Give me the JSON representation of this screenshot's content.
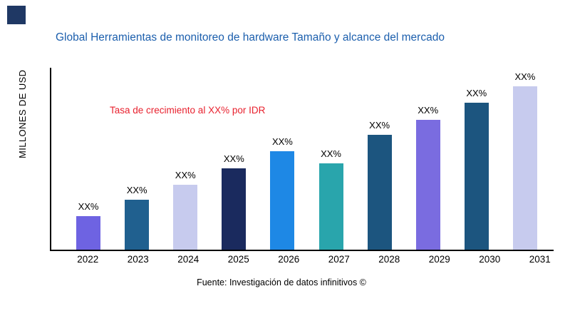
{
  "branding": {
    "logo_color": "#1F3864"
  },
  "chart_data": {
    "type": "bar",
    "title": "Global Herramientas de monitoreo de hardware Tamaño y alcance del mercado",
    "ylabel": "MILLONES DE USD",
    "xlabel": "",
    "annotation": "Tasa de crecimiento al XX% por IDR",
    "source": "Fuente: Investigación de datos infinitivos ©",
    "categories": [
      "2022",
      "2023",
      "2024",
      "2025",
      "2026",
      "2027",
      "2028",
      "2029",
      "2030",
      "2031"
    ],
    "values": [
      47,
      70,
      91,
      114,
      138,
      121,
      161,
      182,
      206,
      229
    ],
    "bar_labels": [
      "XX%",
      "XX%",
      "XX%",
      "XX%",
      "XX%",
      "XX%",
      "XX%",
      "XX%",
      "XX%",
      "XX%"
    ],
    "bar_colors": [
      "#6E63E2",
      "#20608F",
      "#C7CBEE",
      "#1A2A5E",
      "#1E88E5",
      "#29A5AC",
      "#1C557F",
      "#7A6CE0",
      "#1C557F",
      "#C7CBEE"
    ],
    "ylim": [
      0,
      255
    ],
    "grid": false,
    "legend": "none",
    "title_color": "#1C5FAD",
    "annotation_color": "#E8212E",
    "axis_color": "#000000"
  }
}
